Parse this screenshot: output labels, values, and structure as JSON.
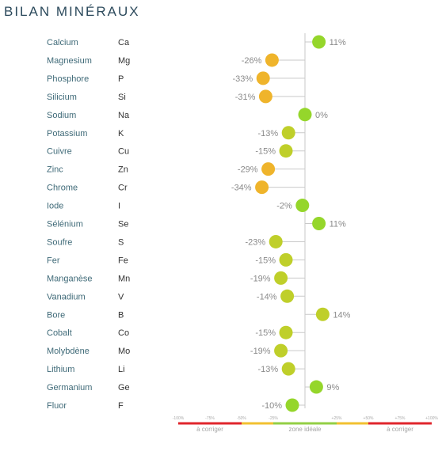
{
  "title": "BILAN MINÉRAUX",
  "chart_data": {
    "type": "dot",
    "xlim": [
      -100,
      100
    ],
    "colors": {
      "green": "#95d62b",
      "yellowgreen": "#bfcf2a",
      "orange": "#efb42b",
      "axis": "#c9c9c9",
      "red": "#e0262c",
      "yellow_band": "#f2c030",
      "green_band": "#93cf45"
    },
    "rows": [
      {
        "name": "Calcium",
        "symbol": "Ca",
        "value": 11,
        "label": "11%"
      },
      {
        "name": "Magnesium",
        "symbol": "Mg",
        "value": -26,
        "label": "-26%"
      },
      {
        "name": "Phosphore",
        "symbol": "P",
        "value": -33,
        "label": "-33%"
      },
      {
        "name": "Silicium",
        "symbol": "Si",
        "value": -31,
        "label": "-31%"
      },
      {
        "name": "Sodium",
        "symbol": "Na",
        "value": 0,
        "label": "0%"
      },
      {
        "name": "Potassium",
        "symbol": "K",
        "value": -13,
        "label": "-13%"
      },
      {
        "name": "Cuivre",
        "symbol": "Cu",
        "value": -15,
        "label": "-15%"
      },
      {
        "name": "Zinc",
        "symbol": "Zn",
        "value": -29,
        "label": "-29%"
      },
      {
        "name": "Chrome",
        "symbol": "Cr",
        "value": -34,
        "label": "-34%"
      },
      {
        "name": "Iode",
        "symbol": "I",
        "value": -2,
        "label": "-2%"
      },
      {
        "name": "Sélénium",
        "symbol": "Se",
        "value": 11,
        "label": "11%"
      },
      {
        "name": "Soufre",
        "symbol": "S",
        "value": -23,
        "label": "-23%"
      },
      {
        "name": "Fer",
        "symbol": "Fe",
        "value": -15,
        "label": "-15%"
      },
      {
        "name": "Manganèse",
        "symbol": "Mn",
        "value": -19,
        "label": "-19%"
      },
      {
        "name": "Vanadium",
        "symbol": "V",
        "value": -14,
        "label": "-14%"
      },
      {
        "name": "Bore",
        "symbol": "B",
        "value": 14,
        "label": "14%"
      },
      {
        "name": "Cobalt",
        "symbol": "Co",
        "value": -15,
        "label": "-15%"
      },
      {
        "name": "Molybdène",
        "symbol": "Mo",
        "value": -19,
        "label": "-19%"
      },
      {
        "name": "Lithium",
        "symbol": "Li",
        "value": -13,
        "label": "-13%"
      },
      {
        "name": "Germanium",
        "symbol": "Ge",
        "value": 9,
        "label": "9%"
      },
      {
        "name": "Fluor",
        "symbol": "F",
        "value": -10,
        "label": "-10%"
      }
    ],
    "ticks": [
      {
        "value": -100,
        "label": "-100%"
      },
      {
        "value": -75,
        "label": "-75%"
      },
      {
        "value": -50,
        "label": "-50%"
      },
      {
        "value": -25,
        "label": "-25%"
      },
      {
        "value": 25,
        "label": "+25%"
      },
      {
        "value": 50,
        "label": "+50%"
      },
      {
        "value": 75,
        "label": "+75%"
      },
      {
        "value": 100,
        "label": "+100%"
      }
    ],
    "zones": [
      {
        "from": -100,
        "to": -50,
        "color": "red",
        "label": "à corriger"
      },
      {
        "from": -50,
        "to": -25,
        "color": "yellow_band",
        "label": ""
      },
      {
        "from": -25,
        "to": 25,
        "color": "green_band",
        "label": "zone idéale"
      },
      {
        "from": 25,
        "to": 50,
        "color": "yellow_band",
        "label": ""
      },
      {
        "from": 50,
        "to": 100,
        "color": "red",
        "label": "à corriger"
      }
    ]
  }
}
